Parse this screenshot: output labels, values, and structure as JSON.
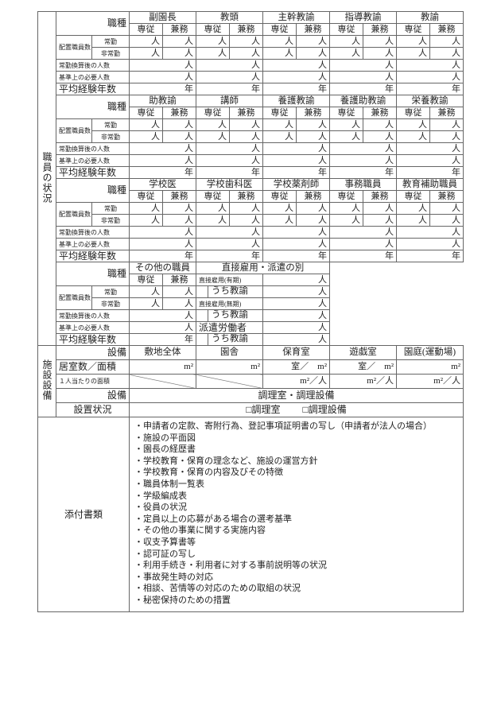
{
  "staff": {
    "section_label": "職員の状況",
    "labels": {
      "job_type": "職種",
      "full": "専従",
      "concurrent": "兼務",
      "placement": "配置職員数",
      "fulltime": "常勤",
      "parttime": "非常勤",
      "converted": "常勤換算後の人数",
      "required": "基準上の必要人数",
      "avg_years": "平均経験年数",
      "unit_person": "人",
      "unit_year": "年"
    },
    "blocks": [
      {
        "roles": [
          "副園長",
          "教頭",
          "主幹教諭",
          "指導教諭",
          "教諭"
        ]
      },
      {
        "roles": [
          "助教諭",
          "講師",
          "養護教諭",
          "養護助教諭",
          "栄養教諭"
        ]
      },
      {
        "roles": [
          "学校医",
          "学校歯科医",
          "学校薬剤師",
          "事務職員",
          "教育補助職員"
        ]
      }
    ],
    "other_block": {
      "role": "その他の職員",
      "employment_header": "直接雇用・派遣の別",
      "employment_rows": [
        {
          "label": "直接雇用(有期)",
          "indent": false
        },
        {
          "label": "うち教諭",
          "indent": true
        },
        {
          "label": "直接雇用(無期)",
          "indent": false
        },
        {
          "label": "うち教諭",
          "indent": true
        },
        {
          "label": "派遣労働者",
          "indent": false
        },
        {
          "label": "うち教諭",
          "indent": true
        }
      ]
    }
  },
  "facilities": {
    "section_label": "施設設備",
    "equipment_label": "設備",
    "columns": [
      "敷地全体",
      "園舎",
      "保育室",
      "遊戯室",
      "園庭(運動場)"
    ],
    "rooms_area_label": "居室数／面積",
    "rooms_area_values": [
      "m²",
      "m²",
      "室／　m²",
      "室／　m²",
      "m²"
    ],
    "per_person_label": "１人当たりの面積",
    "per_person_values": [
      "",
      "",
      "m²／人",
      "m²／人",
      "m²／人"
    ],
    "equipment_value": "調理室・調理設備",
    "installation_label": "設置状況",
    "installation_options": [
      "□調理室",
      "□調理設備"
    ]
  },
  "attachments": {
    "label": "添付書類",
    "items": [
      "・申請者の定款、寄附行為、登記事項証明書の写し（申請者が法人の場合）",
      "・施設の平面図",
      "・園長の経歴書",
      "・学校教育・保育の理念など、施設の運営方針",
      "・学校教育・保育の内容及びその特徴",
      "・職員体制一覧表",
      "・学級編成表",
      "・役員の状況",
      "・定員以上の応募がある場合の選考基準",
      "・その他の事業に関する実施内容",
      "・収支予算書等",
      "・認可証の写し",
      "・利用手続き・利用者に対する事前説明等の状況",
      "・事故発生時の対応",
      "・相談、苦情等の対応のための取組の状況",
      "・秘密保持のための措置"
    ]
  }
}
